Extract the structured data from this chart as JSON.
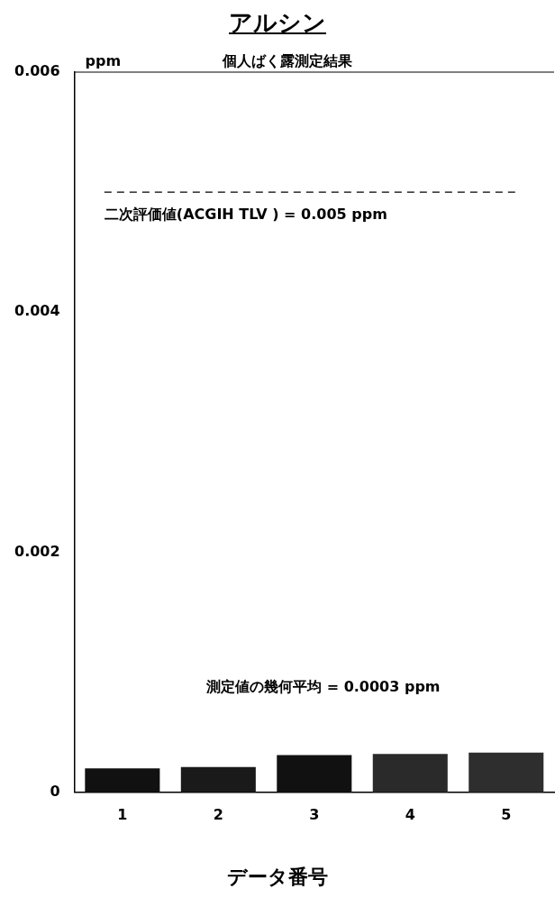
{
  "chart_data": {
    "type": "bar",
    "title": "アルシン",
    "subtitle": "個人ばく露測定結果",
    "ylabel": "ppm",
    "xlabel": "データ番号",
    "categories": [
      "1",
      "2",
      "3",
      "4",
      "5"
    ],
    "values": [
      0.0002,
      0.00021,
      0.00031,
      0.00032,
      0.00033
    ],
    "colors": [
      "#111111",
      "#1a1a1a",
      "#111111",
      "#2a2a2a",
      "#2e2e2e"
    ],
    "ylim": [
      0,
      0.006
    ],
    "yticks": [
      0,
      0.002,
      0.004,
      0.006
    ],
    "grid": false,
    "legend": false,
    "ref_lines": [
      {
        "axis": "y",
        "value": 0.005,
        "label": "二次評価値(ACGIH TLV ) = 0.005 ppm",
        "color": "#000000",
        "line_style": "dashed"
      }
    ],
    "annotations": [
      "測定値の幾何平均 = 0.0003 ppm"
    ]
  }
}
